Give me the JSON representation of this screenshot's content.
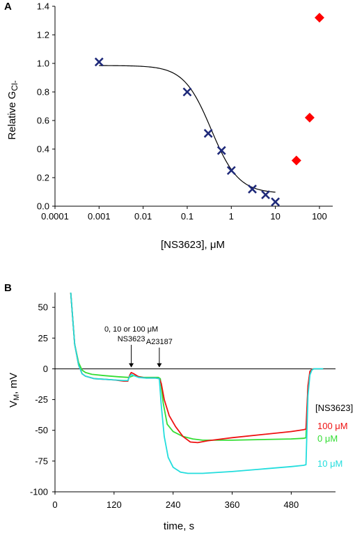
{
  "chart_data": [
    {
      "panel": "A",
      "type": "scatter",
      "x_scale": "log",
      "xlabel": "[NS3623], μM",
      "ylabel_main": "Relative G",
      "ylabel_sub": "Cl-",
      "xlim": [
        0.0001,
        200
      ],
      "ylim": [
        0,
        1.4
      ],
      "x_ticks": [
        0.0001,
        0.001,
        0.01,
        0.1,
        1,
        10,
        100
      ],
      "x_tick_labels": [
        "0.0001",
        "0.001",
        "0.01",
        "0.1",
        "1",
        "10",
        "100"
      ],
      "y_ticks": [
        0,
        0.2,
        0.4,
        0.6,
        0.8,
        1.0,
        1.2,
        1.4
      ],
      "y_tick_labels": [
        "0.0",
        "0.2",
        "0.4",
        "0.6",
        "0.8",
        "1.0",
        "1.2",
        "1.4"
      ],
      "series": [
        {
          "marker": "x",
          "color": "#1f2a7a",
          "points": [
            [
              0.001,
              1.01
            ],
            [
              0.1,
              0.8
            ],
            [
              0.3,
              0.51
            ],
            [
              0.6,
              0.39
            ],
            [
              1.0,
              0.25
            ],
            [
              3.0,
              0.12
            ],
            [
              6.0,
              0.08
            ],
            [
              10.0,
              0.03
            ]
          ]
        },
        {
          "marker": "diamond",
          "color": "#ff0000",
          "points": [
            [
              30,
              0.32
            ],
            [
              60,
              0.62
            ],
            [
              100,
              1.32
            ]
          ]
        }
      ],
      "fit_curve": {
        "color": "#000000",
        "top": 0.985,
        "bottom": 0.09,
        "ic50": 0.35,
        "hill": 1.4,
        "x_range": [
          0.001,
          10
        ]
      }
    },
    {
      "panel": "B",
      "type": "line",
      "xlabel": "time, s",
      "ylabel_main": "V",
      "ylabel_sub": "M",
      "ylabel_tail": ", mV",
      "xlim": [
        0,
        570
      ],
      "ylim": [
        -100,
        62
      ],
      "x_ticks": [
        0,
        120,
        240,
        360,
        480
      ],
      "x_tick_labels": [
        "0",
        "120",
        "240",
        "360",
        "480"
      ],
      "y_ticks": [
        -100,
        -75,
        -50,
        -25,
        0,
        25,
        50
      ],
      "y_tick_labels": [
        "-100",
        "-75",
        "-50",
        "-25",
        "0",
        "25",
        "50"
      ],
      "annotations": [
        {
          "lines": [
            "0, 10 or 100 μM",
            "NS3623"
          ],
          "x": 155
        },
        {
          "lines": [
            "A23187"
          ],
          "x": 212
        }
      ],
      "legend_title": "[NS3623]",
      "series": [
        {
          "name": "0 μM",
          "color": "#33dd33",
          "points": [
            [
              32,
              62
            ],
            [
              40,
              20
            ],
            [
              48,
              5
            ],
            [
              55,
              -1
            ],
            [
              62,
              -3
            ],
            [
              75,
              -4.5
            ],
            [
              100,
              -5.5
            ],
            [
              130,
              -6.5
            ],
            [
              150,
              -7
            ],
            [
              160,
              -5.5
            ],
            [
              165,
              -6
            ],
            [
              180,
              -7
            ],
            [
              200,
              -7
            ],
            [
              210,
              -7
            ],
            [
              214,
              -8
            ],
            [
              220,
              -28
            ],
            [
              228,
              -45
            ],
            [
              240,
              -51
            ],
            [
              260,
              -55
            ],
            [
              280,
              -57
            ],
            [
              300,
              -58
            ],
            [
              360,
              -58
            ],
            [
              420,
              -57.5
            ],
            [
              480,
              -57
            ],
            [
              505,
              -56.5
            ],
            [
              510,
              -56
            ],
            [
              514,
              -15
            ],
            [
              518,
              -3
            ],
            [
              522,
              -0.5
            ],
            [
              526,
              0
            ],
            [
              545,
              0
            ]
          ]
        },
        {
          "name": "100 μM",
          "color": "#ee1111",
          "points": [
            [
              32,
              62
            ],
            [
              40,
              20
            ],
            [
              48,
              3
            ],
            [
              55,
              -4
            ],
            [
              62,
              -6
            ],
            [
              80,
              -8
            ],
            [
              100,
              -8.5
            ],
            [
              120,
              -9
            ],
            [
              140,
              -10
            ],
            [
              148,
              -10
            ],
            [
              152,
              -5
            ],
            [
              155,
              -3
            ],
            [
              160,
              -4
            ],
            [
              170,
              -6.5
            ],
            [
              185,
              -7.5
            ],
            [
              205,
              -7.5
            ],
            [
              212,
              -8
            ],
            [
              216,
              -12
            ],
            [
              222,
              -25
            ],
            [
              232,
              -38
            ],
            [
              245,
              -47
            ],
            [
              260,
              -55
            ],
            [
              275,
              -59.5
            ],
            [
              290,
              -60
            ],
            [
              310,
              -58.5
            ],
            [
              360,
              -56
            ],
            [
              420,
              -53.5
            ],
            [
              480,
              -51
            ],
            [
              505,
              -49.5
            ],
            [
              510,
              -49
            ],
            [
              514,
              -14
            ],
            [
              518,
              -2
            ],
            [
              522,
              -0.5
            ],
            [
              526,
              0
            ],
            [
              545,
              0
            ]
          ]
        },
        {
          "name": "10 μM",
          "color": "#22dddd",
          "points": [
            [
              32,
              62
            ],
            [
              40,
              20
            ],
            [
              48,
              3
            ],
            [
              55,
              -4
            ],
            [
              62,
              -6
            ],
            [
              80,
              -8
            ],
            [
              100,
              -8.5
            ],
            [
              120,
              -9
            ],
            [
              140,
              -9.5
            ],
            [
              148,
              -9.5
            ],
            [
              152,
              -6
            ],
            [
              155,
              -4.5
            ],
            [
              160,
              -5.5
            ],
            [
              170,
              -7
            ],
            [
              185,
              -7.5
            ],
            [
              205,
              -7.5
            ],
            [
              212,
              -8
            ],
            [
              216,
              -30
            ],
            [
              222,
              -55
            ],
            [
              230,
              -72
            ],
            [
              240,
              -80
            ],
            [
              255,
              -84
            ],
            [
              270,
              -85
            ],
            [
              300,
              -85
            ],
            [
              360,
              -83.5
            ],
            [
              420,
              -81.5
            ],
            [
              480,
              -79.5
            ],
            [
              505,
              -78.5
            ],
            [
              510,
              -78
            ],
            [
              514,
              -22
            ],
            [
              518,
              -5
            ],
            [
              522,
              -1
            ],
            [
              526,
              0
            ],
            [
              545,
              0
            ]
          ]
        }
      ]
    }
  ]
}
